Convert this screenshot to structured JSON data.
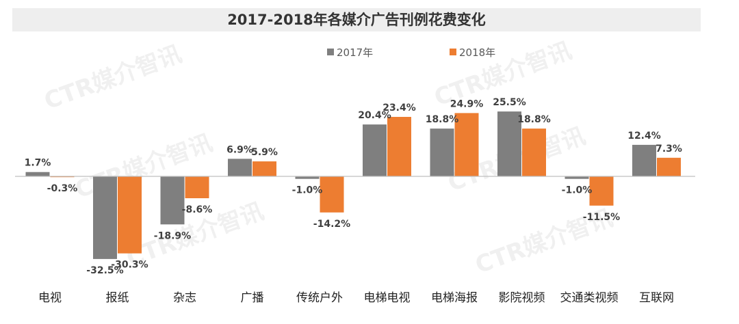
{
  "chart_data": {
    "type": "bar",
    "title": "2017-2018年各媒介广告刊例花费变化",
    "xlabel": "",
    "ylabel": "",
    "unit": "%",
    "categories": [
      "电视",
      "报纸",
      "杂志",
      "广播",
      "传统户外",
      "电梯电视",
      "电梯海报",
      "影院视频",
      "交通类视频",
      "互联网"
    ],
    "series": [
      {
        "name": "2017年",
        "color": "#7f7f7f",
        "values": [
          1.7,
          -32.5,
          -18.9,
          6.9,
          -1.0,
          20.4,
          18.8,
          25.5,
          -1.0,
          12.4
        ],
        "labels": [
          "1.7%",
          "-32.5%",
          "-18.9%",
          "6.9%",
          "-1.0%",
          "20.4%",
          "18.8%",
          "25.5%",
          "-1.0%",
          "12.4%"
        ]
      },
      {
        "name": "2018年",
        "color": "#ed7d31",
        "values": [
          -0.3,
          -30.3,
          -8.6,
          5.9,
          -14.2,
          23.4,
          24.9,
          18.8,
          -11.5,
          7.3
        ],
        "labels": [
          "-0.3%",
          "-30.3%",
          "-8.6%",
          "5.9%",
          "-14.2%",
          "23.4%",
          "24.9%",
          "18.8%",
          "-11.5%",
          "7.3%"
        ]
      }
    ],
    "grid": false,
    "legend_position": "top-center"
  },
  "watermark": "CTR媒介智讯",
  "colors": {
    "title_band": "#eeeeee",
    "axis": "#bfbfbf"
  }
}
